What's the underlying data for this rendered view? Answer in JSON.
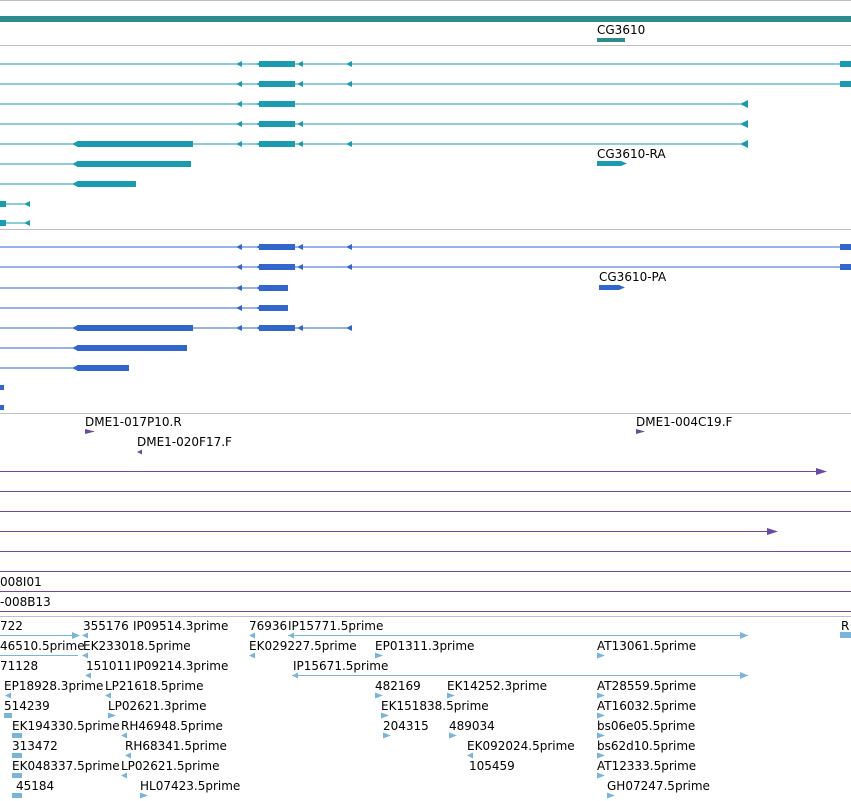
{
  "colors": {
    "gene": "#2e8b8b",
    "mrna": "#1b9bb0",
    "protein": "#3366cc",
    "clone": "#6a4ba0",
    "est": "#7ab4d8",
    "divider": "#c0c0c0"
  },
  "tracks": {
    "gene": {
      "label": "CG3610"
    },
    "mrna": {
      "label": "CG3610-RA"
    },
    "protein": {
      "label": "CG3610-PA"
    },
    "clones": {
      "labels": [
        "DME1-017P10.R",
        "DME1-020F17.F",
        "DME1-004C19.F",
        "008I01",
        "-008B13"
      ]
    },
    "ests": {
      "labels": [
        "722",
        "355176",
        "IP09514.3prime",
        "76936",
        "IP15771.5prime",
        "R",
        "46510.5prime",
        "EK233018.5prime",
        "EK029227.5prime",
        "EP01311.3prime",
        "AT13061.5prime",
        "71128",
        "151011",
        "IP09214.3prime",
        "IP15671.5prime",
        "EP18928.3prime",
        "LP21618.5prime",
        "482169",
        "EK14252.3prime",
        "AT28559.5prime",
        "514239",
        "LP02621.3prime",
        "EK151838.5prime",
        "AT16032.5prime",
        "EK194330.5prime",
        "RH46948.5prime",
        "204315",
        "489034",
        "bs06e05.5prime",
        "313472",
        "RH68341.5prime",
        "EK092024.5prime",
        "bs62d10.5prime",
        "EK048337.5prime",
        "LP02621.5prime",
        "105459",
        "AT12333.5prime",
        "45184",
        "HL07423.5prime",
        "GH07247.5prime"
      ]
    }
  }
}
